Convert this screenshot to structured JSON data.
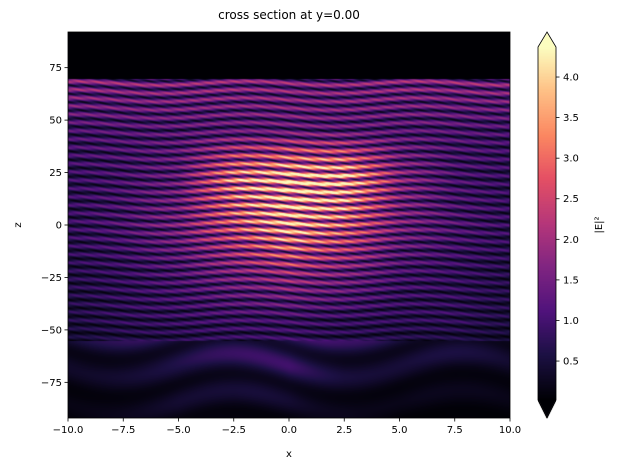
{
  "chart_data": {
    "type": "heatmap",
    "title": "cross section at y=0.00",
    "xlabel": "x",
    "ylabel": "z",
    "colorbar_label": "|E|²",
    "colormap": "magma",
    "colorbar_extend": "both",
    "xlim": [
      -10,
      10
    ],
    "ylim": [
      -92,
      92
    ],
    "clim": [
      0.02,
      4.37
    ],
    "xticks": [
      -10,
      -7.5,
      -5,
      -2.5,
      0,
      2.5,
      5,
      7.5,
      10
    ],
    "xtick_labels": [
      "−10.0",
      "−7.5",
      "−5.0",
      "−2.5",
      "0.0",
      "2.5",
      "5.0",
      "7.5",
      "10.0"
    ],
    "yticks": [
      75,
      50,
      25,
      0,
      -25,
      -50,
      -75
    ],
    "ytick_labels": [
      "75",
      "50",
      "25",
      "0",
      "−25",
      "−50",
      "−75"
    ],
    "cticks": [
      0.5,
      1.0,
      1.5,
      2.0,
      2.5,
      3.0,
      3.5,
      4.0
    ],
    "ctick_labels": [
      "0.5",
      "1.0",
      "1.5",
      "2.0",
      "2.5",
      "3.0",
      "3.5",
      "4.0"
    ],
    "field_z_top": 70,
    "grid_x": [
      -10,
      -7.5,
      -5,
      -2.5,
      0,
      2.5,
      5,
      7.5,
      10
    ],
    "grid_z": [
      67.5,
      45,
      22.5,
      0,
      -22.5,
      -45,
      -67.5,
      -90
    ],
    "values": [
      [
        1.9,
        1.9,
        1.9,
        1.9,
        1.9,
        1.9,
        1.9,
        1.9,
        1.9
      ],
      [
        1.2,
        1.3,
        1.4,
        1.5,
        1.6,
        1.5,
        1.4,
        1.3,
        1.2
      ],
      [
        1.0,
        1.2,
        1.6,
        3.6,
        4.4,
        4.3,
        2.0,
        1.2,
        1.0
      ],
      [
        1.0,
        1.3,
        1.8,
        3.0,
        4.2,
        3.2,
        1.8,
        1.3,
        1.0
      ],
      [
        0.8,
        1.0,
        1.3,
        1.8,
        2.2,
        1.8,
        1.2,
        1.0,
        0.8
      ],
      [
        0.7,
        0.9,
        1.0,
        1.1,
        1.1,
        1.0,
        0.9,
        0.9,
        0.7
      ],
      [
        0.3,
        0.4,
        0.5,
        0.6,
        0.8,
        0.5,
        0.4,
        0.3,
        0.3
      ],
      [
        0.1,
        0.2,
        0.3,
        0.2,
        0.2,
        0.2,
        0.1,
        0.1,
        0.1
      ]
    ]
  }
}
